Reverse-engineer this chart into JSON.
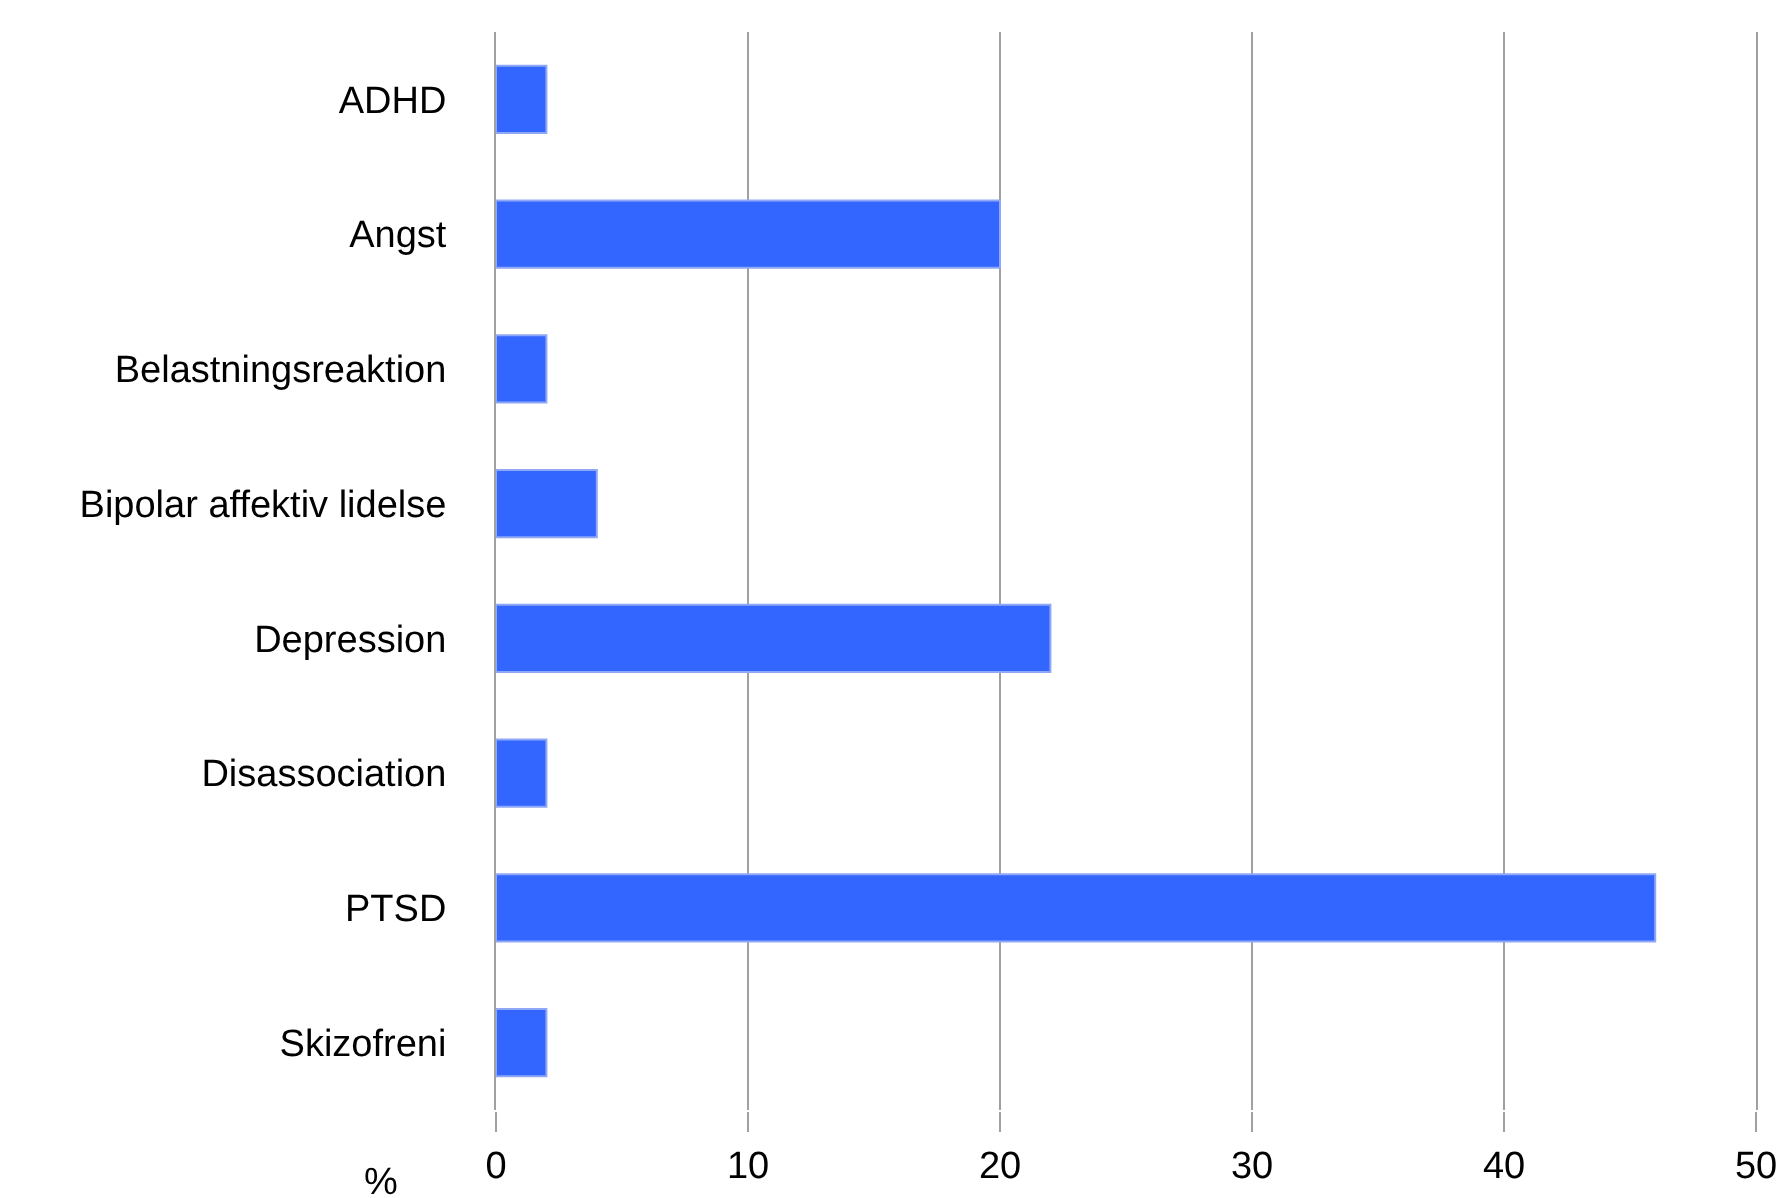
{
  "chart_data": {
    "type": "bar",
    "orientation": "horizontal",
    "categories": [
      "ADHD",
      "Angst",
      "Belastningsreaktion",
      "Bipolar affektiv lidelse",
      "Depression",
      "Disassociation",
      "PTSD",
      "Skizofreni"
    ],
    "values": [
      2,
      20,
      2,
      4,
      22,
      2,
      46,
      2
    ],
    "color": "#3366ff",
    "xlabel": "%",
    "xlim": [
      0,
      50
    ],
    "xticks": [
      0,
      10,
      20,
      30,
      40,
      50
    ],
    "grid": "x",
    "legend": false
  }
}
